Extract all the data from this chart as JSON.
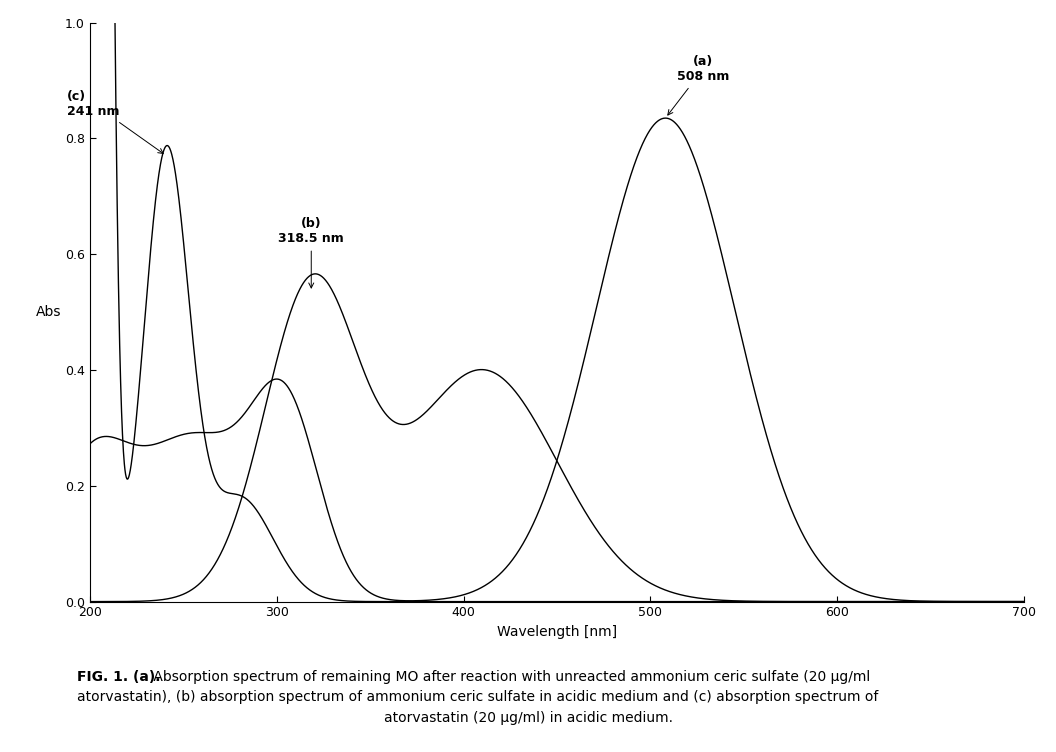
{
  "title": "",
  "xlabel": "Wavelength [nm]",
  "ylabel": "Abs",
  "xlim": [
    200,
    700
  ],
  "ylim": [
    0,
    1
  ],
  "yticks": [
    0,
    0.2,
    0.4,
    0.6,
    0.8,
    1
  ],
  "xticks": [
    200,
    300,
    400,
    500,
    600,
    700
  ],
  "caption_bold_prefix": "FIG. 1. (a).",
  "caption_line1": " Absorption spectrum of remaining MO after reaction with unreacted ammonium ceric sulfate (20 μg/ml",
  "caption_line2": "atorvastatin), (b) absorption spectrum of ammonium ceric sulfate in acidic medium and (c) absorption spectrum of",
  "caption_line3": "atorvastatin (20 μg/ml) in acidic medium.",
  "line_color": "#000000",
  "bg_color": "#ffffff",
  "annotation_fontsize": 9,
  "axis_fontsize": 10
}
